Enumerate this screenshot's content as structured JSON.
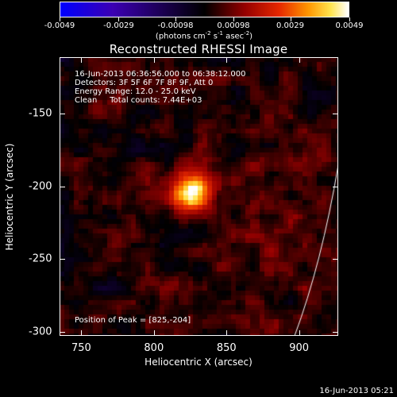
{
  "colorbar": {
    "tick_labels": [
      "-0.0049",
      "-0.0029",
      "-0.00098",
      "0.00098",
      "0.0029",
      "0.0049"
    ],
    "units_text": "(photons cm",
    "units_exp1": "-2",
    "units_mid": " s",
    "units_exp2": "-1",
    "units_end": " asec",
    "units_exp3": "-2",
    "units_close": ")",
    "range": [
      -0.0049,
      0.0049
    ],
    "colormap": "blue-black-red-yellow-white"
  },
  "title": "Reconstructed RHESSI Image",
  "info": {
    "line1": "16-Jun-2013 06:36:56.000 to 06:38:12.000",
    "line2": "Detectors: 3F 5F 6F 7F 8F 9F, Att 0",
    "line3": "Energy Range: 12.0 - 25.0 keV",
    "line4": "Clean     Total counts: 7.44E+03",
    "peak": "Position of Peak = [825,-204]"
  },
  "axes": {
    "x_title": "Heliocentric X (arcsec)",
    "y_title": "Heliocentric Y (arcsec)",
    "x_ticks": [
      "750",
      "800",
      "850",
      "900"
    ],
    "y_ticks": [
      "-150",
      "-200",
      "-250",
      "-300"
    ],
    "xlim": [
      735,
      927
    ],
    "ylim": [
      -303,
      -111
    ]
  },
  "peak_position": [
    825,
    -204
  ],
  "timestamp": "16-Jun-2013 05:21"
}
